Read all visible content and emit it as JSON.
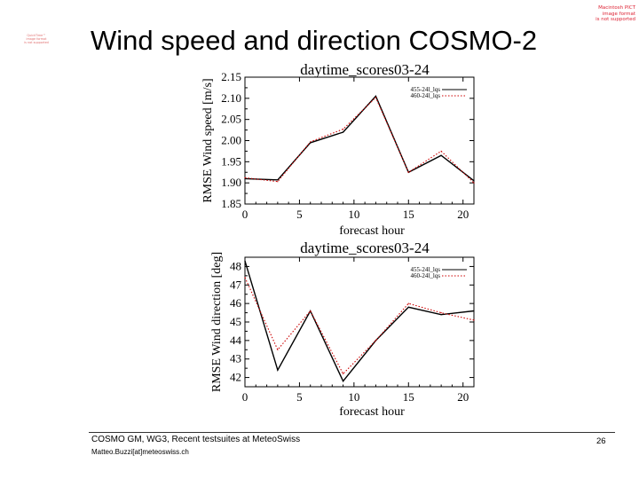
{
  "slide": {
    "title": "Wind speed and direction COSMO-2",
    "placeholder_left": [
      "QuickTime™",
      "image format",
      "is not supported"
    ],
    "placeholder_right": [
      "Macintosh PICT",
      "image format",
      "is not supported"
    ],
    "footer_line1": "COSMO GM, WG3, Recent testsuites at MeteoSwiss",
    "footer_line2": "Matteo.Buzzi[at]meteoswiss.ch",
    "page_number": "26"
  },
  "colors": {
    "series_a": "#000000",
    "series_b": "#cc0000",
    "axis": "#000000"
  },
  "chart_data": [
    {
      "type": "line",
      "title": "daytime_scores03-24",
      "xlabel": "forecast hour",
      "ylabel": "RMSE Wind speed [m/s]",
      "xlim": [
        0,
        21
      ],
      "ylim": [
        1.85,
        2.15
      ],
      "xticks": [
        0,
        5,
        10,
        15,
        20
      ],
      "yticks": [
        1.85,
        1.9,
        1.95,
        2.0,
        2.05,
        2.1,
        2.15
      ],
      "ytick_labels": [
        "1.85",
        "1.90",
        "1.95",
        "2.00",
        "2.05",
        "2.10",
        "2.15"
      ],
      "legend_position": "top-right",
      "series": [
        {
          "name": "455-24l_lqs",
          "style": "solid",
          "x": [
            0,
            3,
            6,
            9,
            12,
            15,
            18,
            21
          ],
          "values": [
            1.91,
            1.907,
            1.995,
            2.02,
            2.105,
            1.925,
            1.965,
            1.905
          ]
        },
        {
          "name": "460-24l_lqs",
          "style": "dotted",
          "x": [
            0,
            3,
            6,
            9,
            12,
            15,
            18,
            21
          ],
          "values": [
            1.912,
            1.903,
            1.997,
            2.027,
            2.102,
            1.925,
            1.975,
            1.9
          ]
        }
      ]
    },
    {
      "type": "line",
      "title": "daytime_scores03-24",
      "xlabel": "forecast hour",
      "ylabel": "RMSE Wind direction [deg]",
      "xlim": [
        0,
        21
      ],
      "ylim": [
        41.5,
        48.5
      ],
      "xticks": [
        0,
        5,
        10,
        15,
        20
      ],
      "yticks": [
        42,
        43,
        44,
        45,
        46,
        47,
        48
      ],
      "ytick_labels": [
        "42",
        "43",
        "44",
        "45",
        "46",
        "47",
        "48"
      ],
      "legend_position": "top-right",
      "series": [
        {
          "name": "455-24l_lqs",
          "style": "solid",
          "x": [
            0,
            3,
            6,
            9,
            12,
            15,
            18,
            21
          ],
          "values": [
            48.3,
            42.4,
            45.6,
            41.8,
            44.0,
            45.8,
            45.4,
            45.6
          ]
        },
        {
          "name": "460-24l_lqs",
          "style": "dotted",
          "x": [
            0,
            3,
            6,
            9,
            12,
            15,
            18,
            21
          ],
          "values": [
            47.4,
            43.5,
            45.6,
            42.2,
            44.0,
            46.0,
            45.5,
            45.1
          ]
        }
      ]
    }
  ]
}
